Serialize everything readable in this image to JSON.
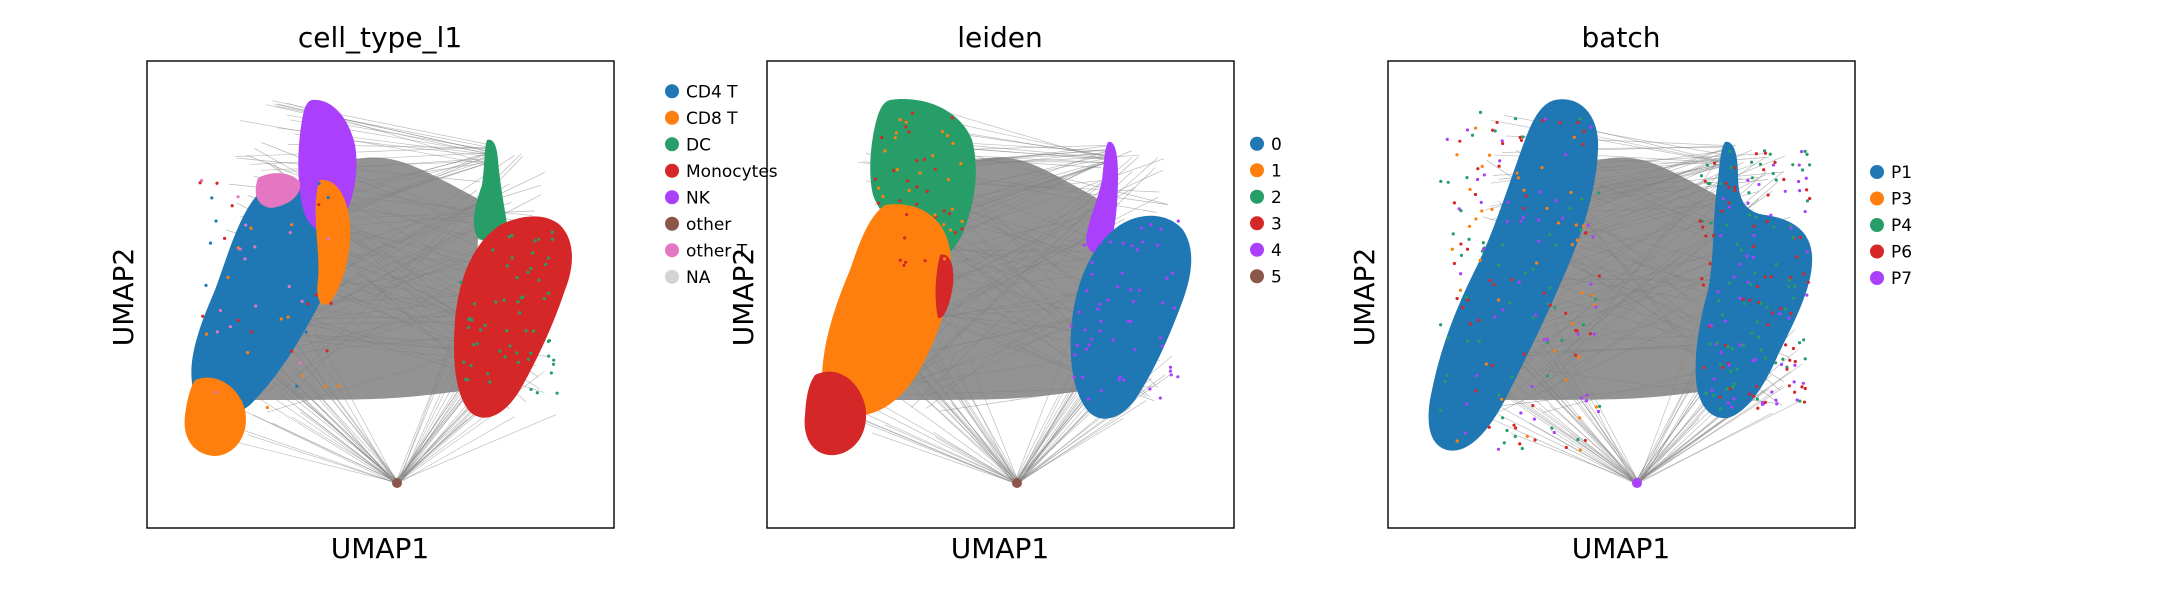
{
  "chart_data": [
    {
      "type": "scatter",
      "title": "cell_type_l1",
      "xlabel": "UMAP1",
      "ylabel": "UMAP2",
      "x_ticks": [],
      "y_ticks": [],
      "grid": false,
      "legend_position": "right",
      "legend": [
        {
          "label": "CD4 T",
          "color": "#1f77b4"
        },
        {
          "label": "CD8 T",
          "color": "#ff7f0e"
        },
        {
          "label": "DC",
          "color": "#279e68"
        },
        {
          "label": "Monocytes",
          "color": "#d62728"
        },
        {
          "label": "NK",
          "color": "#aa40fc"
        },
        {
          "label": "other",
          "color": "#8c564b"
        },
        {
          "label": "other T",
          "color": "#e377c2"
        },
        {
          "label": "NA",
          "color": "#d3d3d3"
        }
      ],
      "edge_color": "#808080"
    },
    {
      "type": "scatter",
      "title": "leiden",
      "xlabel": "UMAP1",
      "ylabel": "UMAP2",
      "x_ticks": [],
      "y_ticks": [],
      "grid": false,
      "legend_position": "right",
      "legend": [
        {
          "label": "0",
          "color": "#1f77b4"
        },
        {
          "label": "1",
          "color": "#ff7f0e"
        },
        {
          "label": "2",
          "color": "#279e68"
        },
        {
          "label": "3",
          "color": "#d62728"
        },
        {
          "label": "4",
          "color": "#aa40fc"
        },
        {
          "label": "5",
          "color": "#8c564b"
        }
      ],
      "edge_color": "#808080"
    },
    {
      "type": "scatter",
      "title": "batch",
      "xlabel": "UMAP1",
      "ylabel": "UMAP2",
      "x_ticks": [],
      "y_ticks": [],
      "grid": false,
      "legend_position": "right",
      "legend": [
        {
          "label": "P1",
          "color": "#1f77b4"
        },
        {
          "label": "P3",
          "color": "#ff7f0e"
        },
        {
          "label": "P4",
          "color": "#279e68"
        },
        {
          "label": "P6",
          "color": "#d62728"
        },
        {
          "label": "P7",
          "color": "#aa40fc"
        }
      ],
      "edge_color": "#808080"
    }
  ]
}
